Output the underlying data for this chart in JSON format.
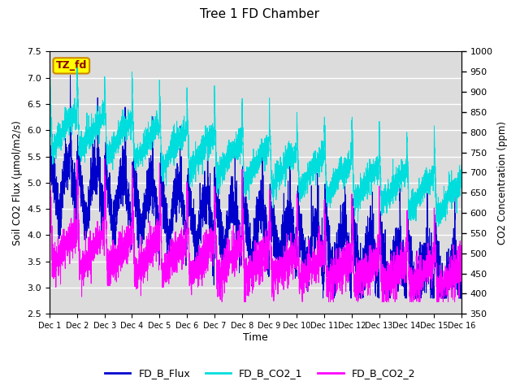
{
  "title": "Tree 1 FD Chamber",
  "ylabel_left": "Soil CO2 Flux (μmol/m2/s)",
  "ylabel_right": "CO2 Concentration (ppm)",
  "xlabel": "Time",
  "ylim_left": [
    2.5,
    7.5
  ],
  "ylim_right": [
    350,
    1000
  ],
  "colors": {
    "FD_B_Flux": "#0000CD",
    "FD_B_CO2_1": "#00DDDD",
    "FD_B_CO2_2": "#FF00FF"
  },
  "background_color": "#DCDCDC",
  "annotation_text": "TZ_fd",
  "annotation_bg": "#FFFF00",
  "annotation_border": "#CC8800",
  "xtick_labels": [
    "Dec 1",
    "Dec 2",
    "Dec 3",
    "Dec 4",
    "Dec 5",
    "Dec 6",
    "Dec 7",
    "Dec 8",
    "Dec 9",
    "Dec 10",
    "Dec 11",
    "Dec 12",
    "Dec 13",
    "Dec 14",
    "Dec 15",
    "Dec 16"
  ],
  "yticks_left": [
    2.5,
    3.0,
    3.5,
    4.0,
    4.5,
    5.0,
    5.5,
    6.0,
    6.5,
    7.0,
    7.5
  ],
  "yticks_right": [
    350,
    400,
    450,
    500,
    550,
    600,
    650,
    700,
    750,
    800,
    850,
    900,
    950,
    1000
  ],
  "legend_entries": [
    "FD_B_Flux",
    "FD_B_CO2_1",
    "FD_B_CO2_2"
  ],
  "n_days": 15,
  "pts_per_day": 288
}
